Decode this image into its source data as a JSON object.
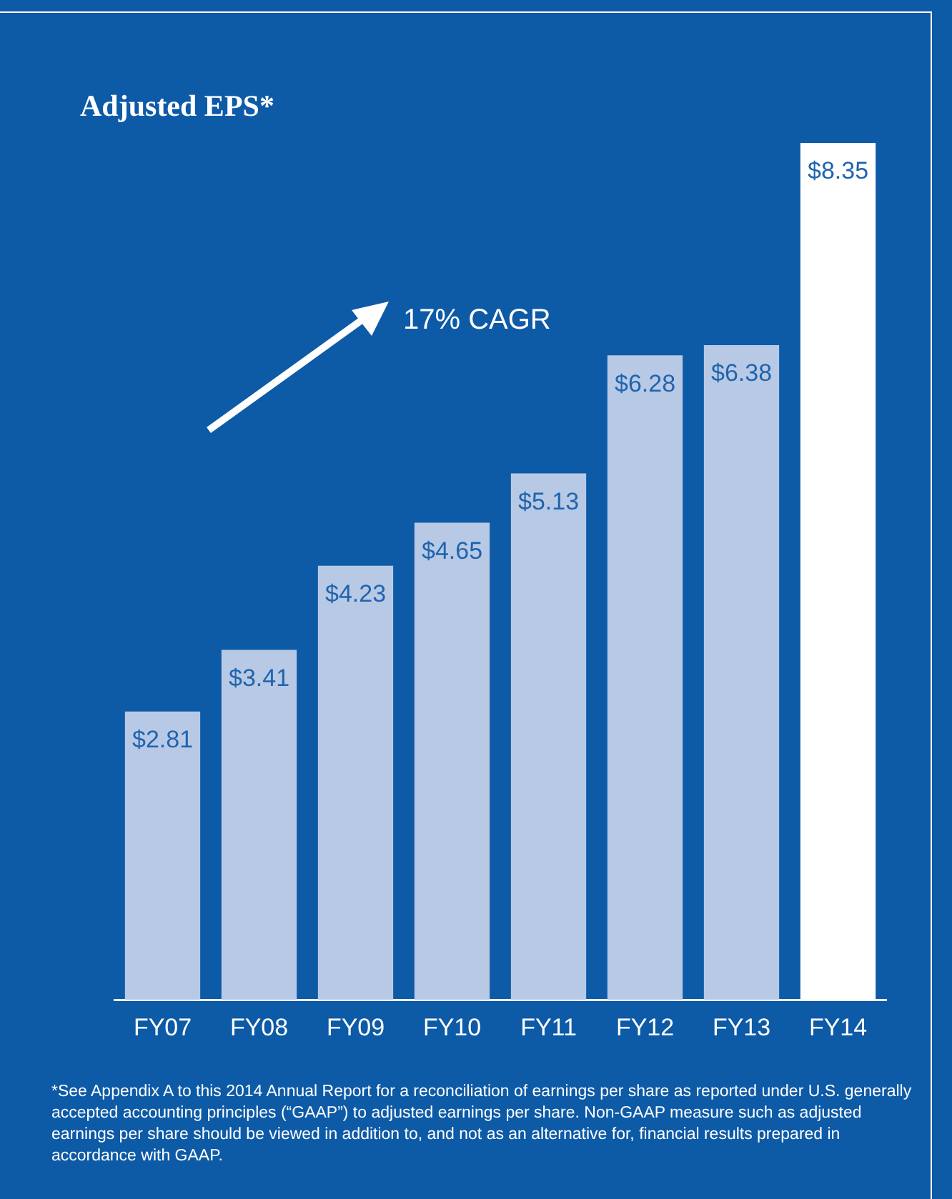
{
  "chart_data": {
    "type": "bar",
    "title": "Adjusted EPS*",
    "categories": [
      "FY07",
      "FY08",
      "FY09",
      "FY10",
      "FY11",
      "FY12",
      "FY13",
      "FY14"
    ],
    "values": [
      2.81,
      3.41,
      4.23,
      4.65,
      5.13,
      6.28,
      6.38,
      8.35
    ],
    "colors": [
      "#b8c9e6",
      "#b8c9e6",
      "#b8c9e6",
      "#b8c9e6",
      "#b8c9e6",
      "#b8c9e6",
      "#b8c9e6",
      "#ffffff"
    ],
    "value_labels": [
      "$2.81",
      "$3.41",
      "$4.23",
      "$4.65",
      "$5.13",
      "$6.28",
      "$6.38",
      "$8.35"
    ],
    "grid": false,
    "legend": false,
    "annotations": [
      "17% CAGR",
      "*See Appendix A to this 2014 Annual Report for a reconciliation of earnings per share as reported under U.S. generally accepted accounting principles (“GAAP”) to adjusted earnings per share. Non-GAAP measure such as adjusted earnings per share should be viewed in addition to, and not as an alternative for, financial results prepared in accordance with GAAP."
    ]
  }
}
